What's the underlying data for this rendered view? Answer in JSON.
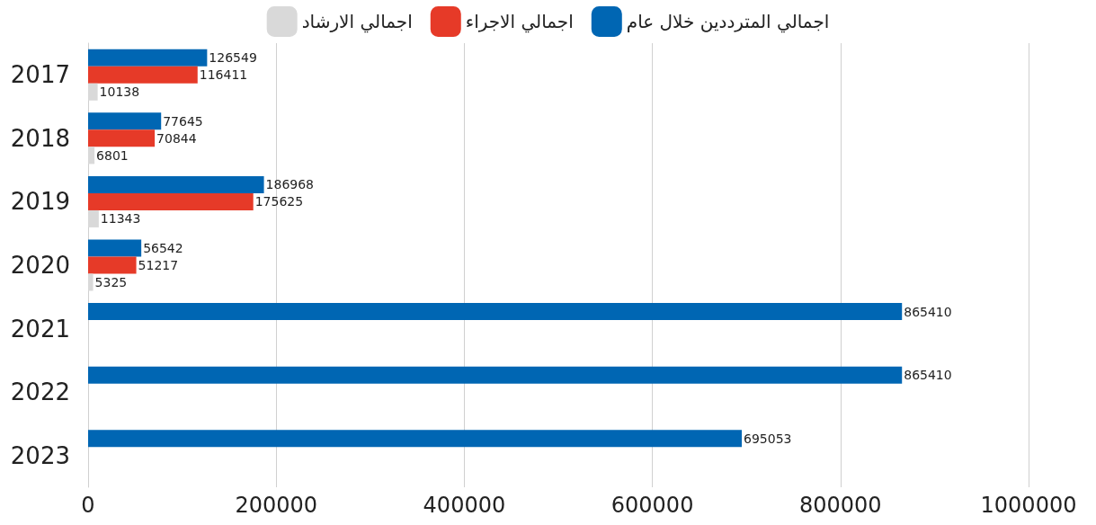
{
  "chart_data": {
    "type": "bar",
    "orientation": "horizontal",
    "categories": [
      "2017",
      "2018",
      "2019",
      "2020",
      "2021",
      "2022",
      "2023"
    ],
    "series": [
      {
        "name": "اجمالي المترددين خلال عام",
        "color": "#0066b3",
        "values": [
          126549,
          77645,
          186968,
          56542,
          865410,
          865410,
          695053
        ]
      },
      {
        "name": "اجمالي الاجراء",
        "color": "#e63a28",
        "values": [
          116411,
          70844,
          175625,
          51217,
          null,
          null,
          null
        ]
      },
      {
        "name": "اجمالي الارشاد",
        "color": "#d9d9d9",
        "values": [
          10138,
          6801,
          11343,
          5325,
          null,
          null,
          null
        ]
      }
    ],
    "xlim": [
      0,
      1000000
    ],
    "xticks": [
      0,
      200000,
      400000,
      600000,
      800000,
      1000000
    ],
    "grid": "x",
    "legend": "top",
    "data_labels": true
  }
}
